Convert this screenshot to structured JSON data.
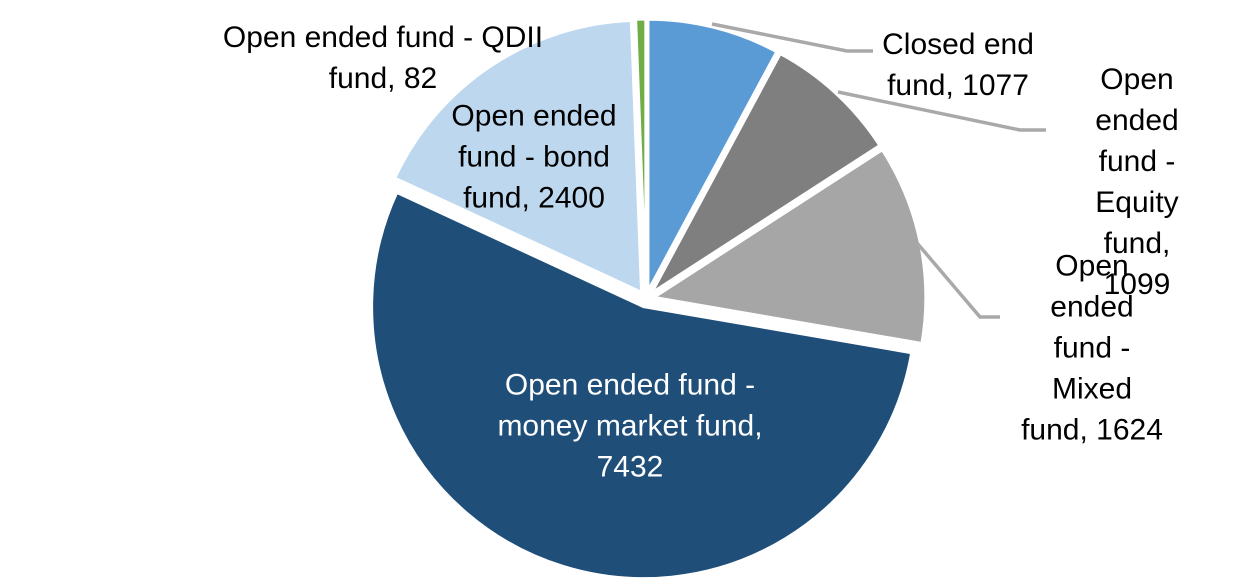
{
  "chart_data": {
    "type": "pie",
    "title": "",
    "legend": "none",
    "direction": "clockwise",
    "start_angle_deg": 0,
    "slices": [
      {
        "label": "Closed end fund",
        "value": 1077,
        "color": "#5B9BD5"
      },
      {
        "label": "Open ended fund - Equity fund",
        "value": 1099,
        "color": "#7F7F7F"
      },
      {
        "label": "Open ended fund - Mixed fund",
        "value": 1624,
        "color": "#A6A6A6"
      },
      {
        "label": "Open ended fund - money market fund",
        "value": 7432,
        "color": "#1F4E79"
      },
      {
        "label": "Open ended fund - bond fund",
        "value": 2400,
        "color": "#BDD7EE"
      },
      {
        "label": "Open ended fund - QDII fund",
        "value": 82,
        "color": "#70AD47"
      }
    ]
  },
  "data_labels": {
    "qdii": "Open ended fund - QDII\nfund, 82",
    "bond": "Open ended\nfund - bond\nfund, 2400",
    "closed": "Closed end\nfund, 1077",
    "equity": "Open ended\nfund - Equity\nfund, 1099",
    "mixed": "Open ended\nfund - Mixed\nfund, 1624",
    "money": "Open ended fund -\nmoney market fund,\n7432"
  },
  "colors": {
    "leader_line": "#A9A9A9",
    "slice_border": "#FFFFFF",
    "label_text": "#000000",
    "inside_label_text": "#FFFFFF",
    "background": "#FFFFFF"
  }
}
